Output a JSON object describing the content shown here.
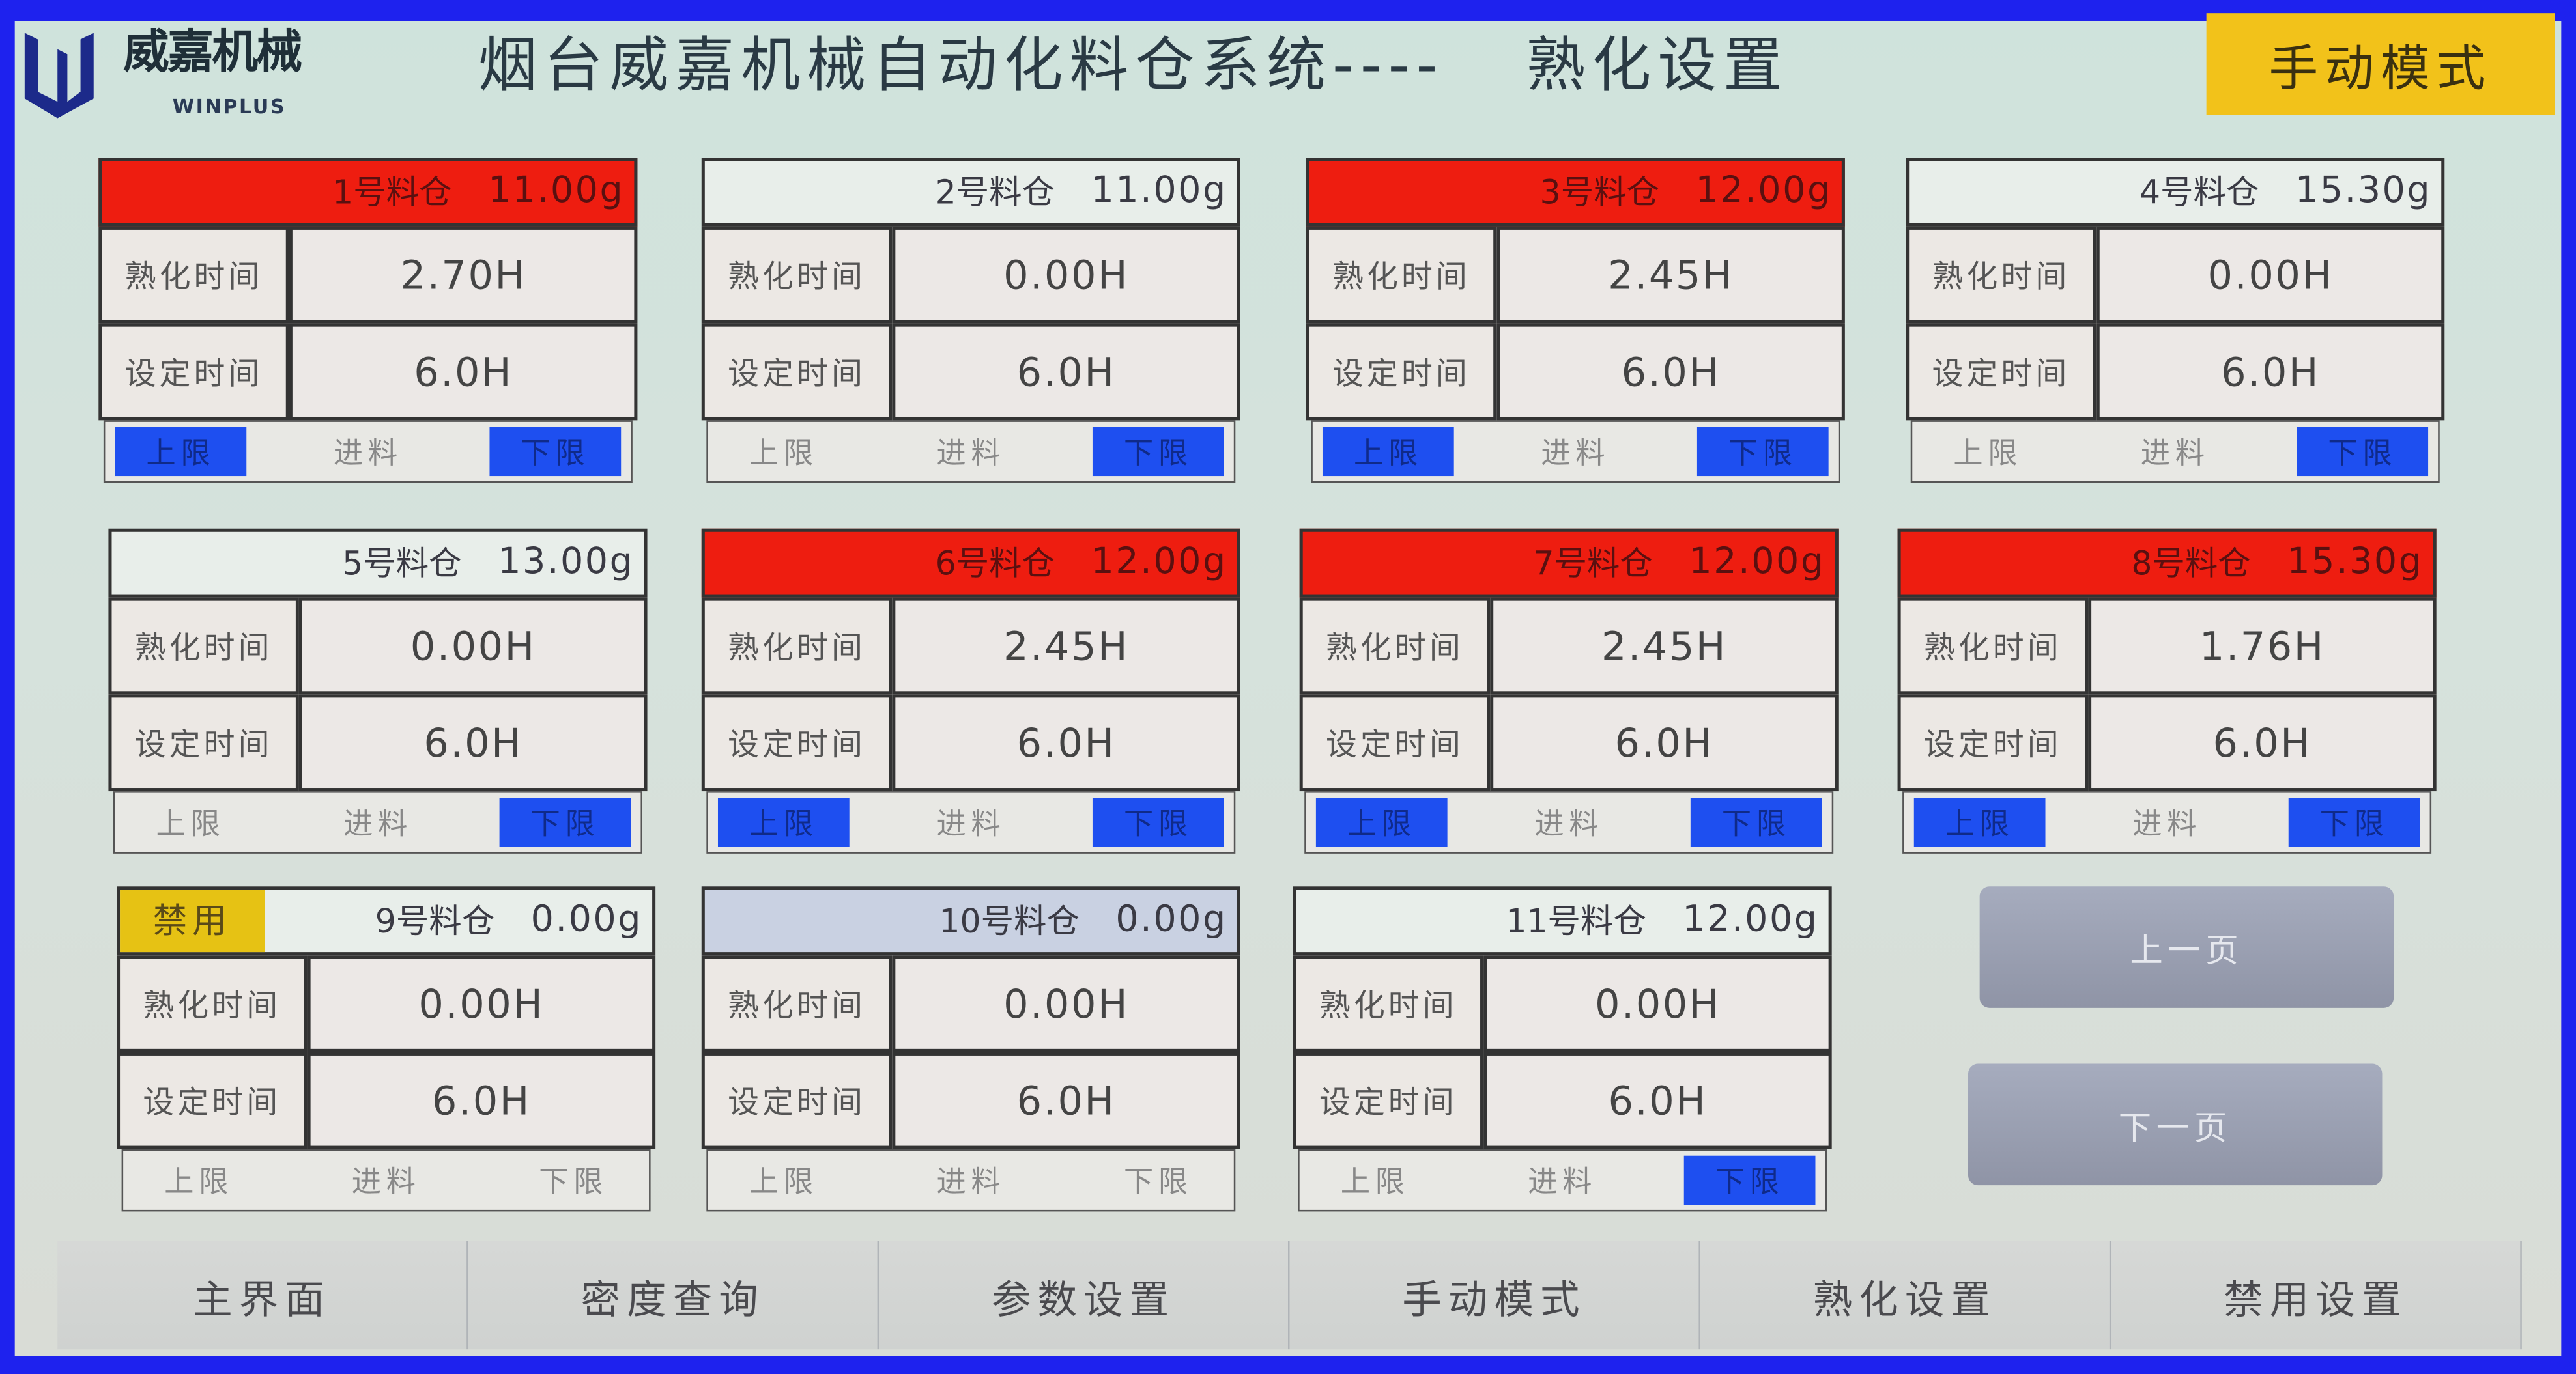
{
  "logo": {
    "cn": "威嘉机械",
    "en": "WINPLUS"
  },
  "header": {
    "title": "烟台威嘉机械自动化料仓系统----",
    "subtitle": "熟化设置",
    "mode": "手动模式"
  },
  "labels": {
    "aging_time": "熟化时间",
    "set_time": "设定时间",
    "upper": "上限",
    "feed": "进料",
    "lower": "下限",
    "disabled": "禁用"
  },
  "colors": {
    "alarm_header": "#ee1d10",
    "indicator_on": "#1e4ff0",
    "disabled_badge": "#e6c214",
    "mode_badge": "#f2c21a",
    "frame": "#1e22ee"
  },
  "bins": [
    {
      "name": "1号料仓",
      "weight": "11.00g",
      "aging": "2.70H",
      "set": "6.0H",
      "header": "red",
      "upper": true,
      "feed": false,
      "lower": true
    },
    {
      "name": "2号料仓",
      "weight": "11.00g",
      "aging": "0.00H",
      "set": "6.0H",
      "header": "normal",
      "upper": false,
      "feed": false,
      "lower": true
    },
    {
      "name": "3号料仓",
      "weight": "12.00g",
      "aging": "2.45H",
      "set": "6.0H",
      "header": "red",
      "upper": true,
      "feed": false,
      "lower": true
    },
    {
      "name": "4号料仓",
      "weight": "15.30g",
      "aging": "0.00H",
      "set": "6.0H",
      "header": "normal",
      "upper": false,
      "feed": false,
      "lower": true
    },
    {
      "name": "5号料仓",
      "weight": "13.00g",
      "aging": "0.00H",
      "set": "6.0H",
      "header": "normal",
      "upper": false,
      "feed": false,
      "lower": true
    },
    {
      "name": "6号料仓",
      "weight": "12.00g",
      "aging": "2.45H",
      "set": "6.0H",
      "header": "red",
      "upper": true,
      "feed": false,
      "lower": true
    },
    {
      "name": "7号料仓",
      "weight": "12.00g",
      "aging": "2.45H",
      "set": "6.0H",
      "header": "red",
      "upper": true,
      "feed": false,
      "lower": true
    },
    {
      "name": "8号料仓",
      "weight": "15.30g",
      "aging": "1.76H",
      "set": "6.0H",
      "header": "red",
      "upper": true,
      "feed": false,
      "lower": true
    },
    {
      "name": "9号料仓",
      "weight": "0.00g",
      "aging": "0.00H",
      "set": "6.0H",
      "header": "normal",
      "disabled": true,
      "upper": false,
      "feed": false,
      "lower": false
    },
    {
      "name": "10号料仓",
      "weight": "0.00g",
      "aging": "0.00H",
      "set": "6.0H",
      "header": "blue",
      "upper": false,
      "feed": false,
      "lower": false
    },
    {
      "name": "11号料仓",
      "weight": "12.00g",
      "aging": "0.00H",
      "set": "6.0H",
      "header": "normal",
      "upper": false,
      "feed": false,
      "lower": true
    }
  ],
  "paging": {
    "prev": "上一页",
    "next": "下一页"
  },
  "nav": [
    "主界面",
    "密度查询",
    "参数设置",
    "手动模式",
    "熟化设置",
    "禁用设置"
  ]
}
